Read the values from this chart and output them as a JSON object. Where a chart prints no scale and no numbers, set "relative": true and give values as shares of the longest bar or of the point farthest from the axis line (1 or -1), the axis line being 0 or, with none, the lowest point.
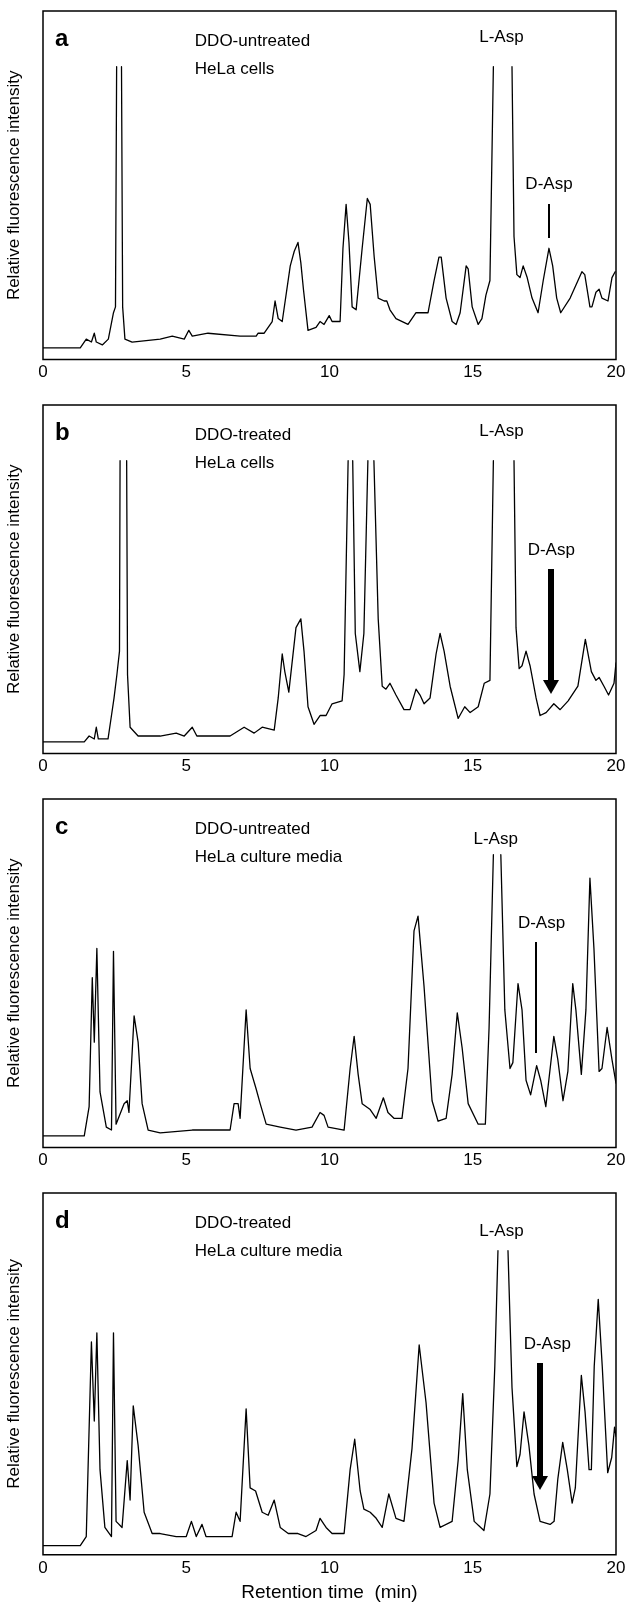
{
  "chart_data": [
    {
      "type": "line",
      "title": "a",
      "subtitle": "DDO-untreated\nHeLa cells",
      "ylabel": "Relative fluorescence intensity",
      "relative": true,
      "xlim": [
        0,
        20
      ],
      "xticks": [
        0,
        5,
        10,
        15,
        20
      ],
      "grid": false,
      "legend": false,
      "marker": "none",
      "annotations": [
        "L-Asp",
        "D-Asp"
      ],
      "series": [
        {
          "color": "#000000",
          "x": [
            0,
            1.3,
            1.51,
            1.69,
            1.79,
            1.86,
            2.07,
            2.28,
            2.46,
            2.53,
            2.57,
            2.65,
            2.74,
            2.78,
            2.86,
            3.11,
            4.09,
            4.51,
            4.93,
            5.09,
            5.21,
            5.76,
            6.88,
            7.44,
            7.51,
            7.72,
            8.0,
            8.1,
            8.21,
            8.35,
            8.63,
            8.77,
            8.9,
            9.0,
            9.09,
            9.25,
            9.53,
            9.67,
            9.81,
            9.99,
            10.09,
            10.37,
            10.47,
            10.58,
            10.68,
            10.79,
            10.93,
            11.14,
            11.32,
            11.42,
            11.56,
            11.7,
            11.91,
            12.0,
            12.11,
            12.32,
            12.74,
            13.02,
            13.44,
            13.65,
            13.82,
            13.9,
            14.07,
            14.28,
            14.42,
            14.56,
            14.77,
            14.84,
            14.98,
            15.19,
            15.32,
            15.46,
            15.6,
            15.72,
            16.05,
            16.37,
            16.44,
            16.54,
            16.65,
            16.76,
            16.9,
            17.07,
            17.28,
            17.46,
            17.66,
            17.79,
            17.93,
            18.07,
            18.4,
            18.81,
            18.91,
            19.09,
            19.16,
            19.3,
            19.41,
            19.51,
            19.72,
            19.86,
            19.97
          ],
          "values": [
            0.04,
            0.04,
            0.07,
            0.06,
            0.09,
            0.06,
            0.05,
            0.07,
            0.16,
            0.18,
            1,
            null,
            1,
            0.18,
            0.07,
            0.06,
            0.07,
            0.08,
            0.07,
            0.1,
            0.08,
            0.09,
            0.08,
            0.08,
            0.09,
            0.09,
            0.13,
            0.2,
            0.14,
            0.13,
            0.32,
            0.37,
            0.4,
            0.33,
            0.24,
            0.1,
            0.11,
            0.13,
            0.12,
            0.15,
            0.13,
            0.13,
            0.38,
            0.53,
            0.4,
            0.18,
            0.17,
            0.38,
            0.55,
            0.53,
            0.35,
            0.21,
            0.2,
            0.2,
            0.17,
            0.14,
            0.12,
            0.16,
            0.16,
            0.27,
            0.35,
            0.35,
            0.21,
            0.13,
            0.12,
            0.16,
            0.32,
            0.31,
            0.18,
            0.12,
            0.14,
            0.22,
            0.27,
            1,
            null,
            1,
            0.42,
            0.29,
            0.28,
            0.32,
            0.28,
            0.21,
            0.16,
            0.27,
            0.38,
            0.32,
            0.21,
            0.16,
            0.21,
            0.3,
            0.29,
            0.18,
            0.18,
            0.23,
            0.24,
            0.21,
            0.2,
            0.28,
            0.3
          ]
        }
      ]
    },
    {
      "type": "line",
      "title": "b",
      "subtitle": "DDO-treated\nHeLa cells",
      "ylabel": "Relative fluorescence intensity",
      "relative": true,
      "xlim": [
        0,
        20
      ],
      "xticks": [
        0,
        5,
        10,
        15,
        20
      ],
      "grid": false,
      "legend": false,
      "marker": "none",
      "annotations": [
        "L-Asp",
        "D-Asp"
      ],
      "series": [
        {
          "color": "#000000",
          "x": [
            0,
            1.44,
            1.61,
            1.79,
            1.86,
            1.93,
            2.27,
            2.39,
            2.48,
            2.58,
            2.67,
            2.69,
            2.8,
            2.92,
            2.95,
            3.04,
            3.32,
            4.09,
            4.65,
            4.93,
            5.21,
            5.37,
            6.04,
            6.53,
            7.02,
            7.37,
            7.65,
            8.07,
            8.21,
            8.35,
            8.44,
            8.58,
            8.83,
            9.0,
            9.11,
            9.25,
            9.46,
            9.67,
            9.88,
            10.09,
            10.44,
            10.51,
            10.65,
            10.73,
            10.81,
            10.9,
            11.06,
            11.2,
            11.34,
            11.45,
            11.55,
            11.7,
            11.84,
            11.97,
            12.11,
            12.32,
            12.6,
            12.81,
            13.02,
            13.16,
            13.3,
            13.51,
            13.72,
            13.86,
            14.0,
            14.21,
            14.49,
            14.72,
            14.91,
            15.19,
            15.4,
            15.6,
            15.72,
            16.08,
            16.44,
            16.51,
            16.62,
            16.72,
            16.86,
            17.0,
            17.21,
            17.35,
            17.56,
            17.83,
            18.05,
            18.33,
            18.67,
            18.93,
            19.14,
            19.3,
            19.41,
            19.58,
            19.74,
            19.93,
            20.0
          ],
          "values": [
            0.04,
            0.04,
            0.06,
            0.05,
            0.09,
            0.05,
            0.05,
            0.13,
            0.19,
            0.27,
            0.35,
            1,
            null,
            1,
            0.27,
            0.09,
            0.06,
            0.06,
            0.07,
            0.06,
            0.09,
            0.06,
            0.06,
            0.06,
            0.09,
            0.07,
            0.09,
            0.08,
            0.19,
            0.34,
            0.28,
            0.21,
            0.43,
            0.46,
            0.35,
            0.16,
            0.1,
            0.13,
            0.13,
            0.17,
            0.18,
            0.27,
            1,
            null,
            1,
            0.41,
            0.28,
            0.41,
            1,
            null,
            1,
            0.46,
            0.23,
            0.22,
            0.24,
            0.2,
            0.15,
            0.15,
            0.22,
            0.2,
            0.17,
            0.19,
            0.34,
            0.41,
            0.35,
            0.23,
            0.12,
            0.16,
            0.14,
            0.16,
            0.24,
            0.25,
            1,
            null,
            1,
            0.43,
            0.29,
            0.3,
            0.35,
            0.3,
            0.19,
            0.13,
            0.14,
            0.17,
            0.15,
            0.18,
            0.23,
            0.39,
            0.28,
            0.25,
            0.26,
            0.23,
            0.2,
            0.24,
            0.31
          ]
        }
      ]
    },
    {
      "type": "line",
      "title": "c",
      "subtitle": "DDO-untreated\nHeLa culture media",
      "ylabel": "Relative fluorescence intensity",
      "relative": true,
      "xlim": [
        0,
        20
      ],
      "xticks": [
        0,
        5,
        10,
        15,
        20
      ],
      "grid": false,
      "legend": false,
      "marker": "none",
      "annotations": [
        "L-Asp",
        "D-Asp"
      ],
      "series": [
        {
          "color": "#000000",
          "x": [
            0,
            1.44,
            1.61,
            1.72,
            1.79,
            1.88,
            1.99,
            2.21,
            2.39,
            2.46,
            2.55,
            2.83,
            2.94,
            3.0,
            3.18,
            3.32,
            3.46,
            3.67,
            4.09,
            5.21,
            6.53,
            6.67,
            6.81,
            6.88,
            7.09,
            7.23,
            7.44,
            7.58,
            7.79,
            8.28,
            8.83,
            9.39,
            9.67,
            9.81,
            9.95,
            10.51,
            10.72,
            10.86,
            11.0,
            11.14,
            11.42,
            11.63,
            11.88,
            12.04,
            12.25,
            12.53,
            12.74,
            12.95,
            13.09,
            13.3,
            13.58,
            13.79,
            14.07,
            14.28,
            14.46,
            14.63,
            14.84,
            15.19,
            15.44,
            15.57,
            15.72,
            15.85,
            15.98,
            16.12,
            16.3,
            16.4,
            16.58,
            16.72,
            16.86,
            17.02,
            17.23,
            17.37,
            17.55,
            17.83,
            17.97,
            18.15,
            18.32,
            18.49,
            18.6,
            18.79,
            18.95,
            19.09,
            19.23,
            19.41,
            19.51,
            19.69,
            19.86,
            20.0
          ],
          "values": [
            0.04,
            0.04,
            0.14,
            0.58,
            0.36,
            0.68,
            0.19,
            0.07,
            0.06,
            0.67,
            0.08,
            0.15,
            0.16,
            0.12,
            0.45,
            0.36,
            0.15,
            0.06,
            0.05,
            0.06,
            0.06,
            0.15,
            0.15,
            0.1,
            0.47,
            0.27,
            0.2,
            0.15,
            0.08,
            0.07,
            0.06,
            0.07,
            0.12,
            0.11,
            0.07,
            0.06,
            0.27,
            0.38,
            0.25,
            0.15,
            0.13,
            0.1,
            0.17,
            0.12,
            0.1,
            0.1,
            0.27,
            0.74,
            0.79,
            0.55,
            0.16,
            0.09,
            0.1,
            0.25,
            0.46,
            0.34,
            0.15,
            0.08,
            0.08,
            0.41,
            1,
            null,
            1,
            0.47,
            0.27,
            0.29,
            0.56,
            0.47,
            0.23,
            0.18,
            0.28,
            0.23,
            0.14,
            0.38,
            0.3,
            0.16,
            0.26,
            0.56,
            0.47,
            0.25,
            0.47,
            0.92,
            0.68,
            0.26,
            0.27,
            0.41,
            0.3,
            0.22
          ]
        }
      ]
    },
    {
      "type": "line",
      "title": "d",
      "subtitle": "DDO-treated\nHeLa culture media",
      "xlabel": "Retention time  (min)",
      "ylabel": "Relative fluorescence intensity",
      "relative": true,
      "xlim": [
        0,
        20
      ],
      "xticks": [
        0,
        5,
        10,
        15,
        20
      ],
      "grid": false,
      "legend": false,
      "marker": "none",
      "annotations": [
        "L-Asp",
        "D-Asp"
      ],
      "series": [
        {
          "color": "#000000",
          "x": [
            0,
            1.3,
            1.51,
            1.69,
            1.79,
            1.88,
            1.99,
            2.16,
            2.39,
            2.46,
            2.55,
            2.76,
            2.94,
            3.04,
            3.15,
            3.32,
            3.53,
            3.81,
            4.09,
            4.65,
            5.0,
            5.18,
            5.35,
            5.55,
            5.69,
            6.6,
            6.74,
            6.88,
            7.09,
            7.23,
            7.42,
            7.65,
            7.86,
            8.07,
            8.28,
            8.56,
            8.9,
            9.18,
            9.53,
            9.67,
            9.88,
            10.09,
            10.51,
            10.72,
            10.88,
            11.07,
            11.2,
            11.42,
            11.63,
            11.84,
            12.07,
            12.32,
            12.6,
            12.88,
            13.13,
            13.37,
            13.65,
            13.86,
            14.28,
            14.49,
            14.65,
            14.81,
            15.05,
            15.39,
            15.6,
            15.77,
            15.88,
            16.05,
            16.23,
            16.37,
            16.54,
            16.65,
            16.79,
            16.96,
            17.14,
            17.35,
            17.7,
            17.84,
            17.97,
            18.14,
            18.3,
            18.47,
            18.58,
            18.79,
            18.92,
            19.06,
            19.14,
            19.24,
            19.38,
            19.52,
            19.71,
            19.85,
            19.95,
            20.0
          ],
          "values": [
            0.03,
            0.03,
            0.06,
            0.7,
            0.44,
            0.73,
            0.28,
            0.09,
            0.06,
            0.73,
            0.11,
            0.09,
            0.31,
            0.18,
            0.49,
            0.36,
            0.14,
            0.07,
            0.07,
            0.06,
            0.06,
            0.11,
            0.06,
            0.1,
            0.06,
            0.06,
            0.14,
            0.11,
            0.48,
            0.22,
            0.21,
            0.14,
            0.13,
            0.18,
            0.09,
            0.07,
            0.07,
            0.06,
            0.08,
            0.12,
            0.09,
            0.07,
            0.07,
            0.28,
            0.38,
            0.21,
            0.15,
            0.14,
            0.12,
            0.09,
            0.2,
            0.12,
            0.11,
            0.35,
            0.69,
            0.5,
            0.17,
            0.09,
            0.11,
            0.31,
            0.53,
            0.28,
            0.11,
            0.08,
            0.2,
            0.62,
            1,
            null,
            1,
            0.55,
            0.29,
            0.33,
            0.47,
            0.36,
            0.2,
            0.11,
            0.1,
            0.11,
            0.25,
            0.37,
            0.28,
            0.17,
            0.22,
            0.59,
            0.47,
            0.28,
            0.28,
            0.62,
            0.84,
            0.62,
            0.27,
            0.32,
            0.42,
            0.39
          ]
        }
      ]
    }
  ]
}
